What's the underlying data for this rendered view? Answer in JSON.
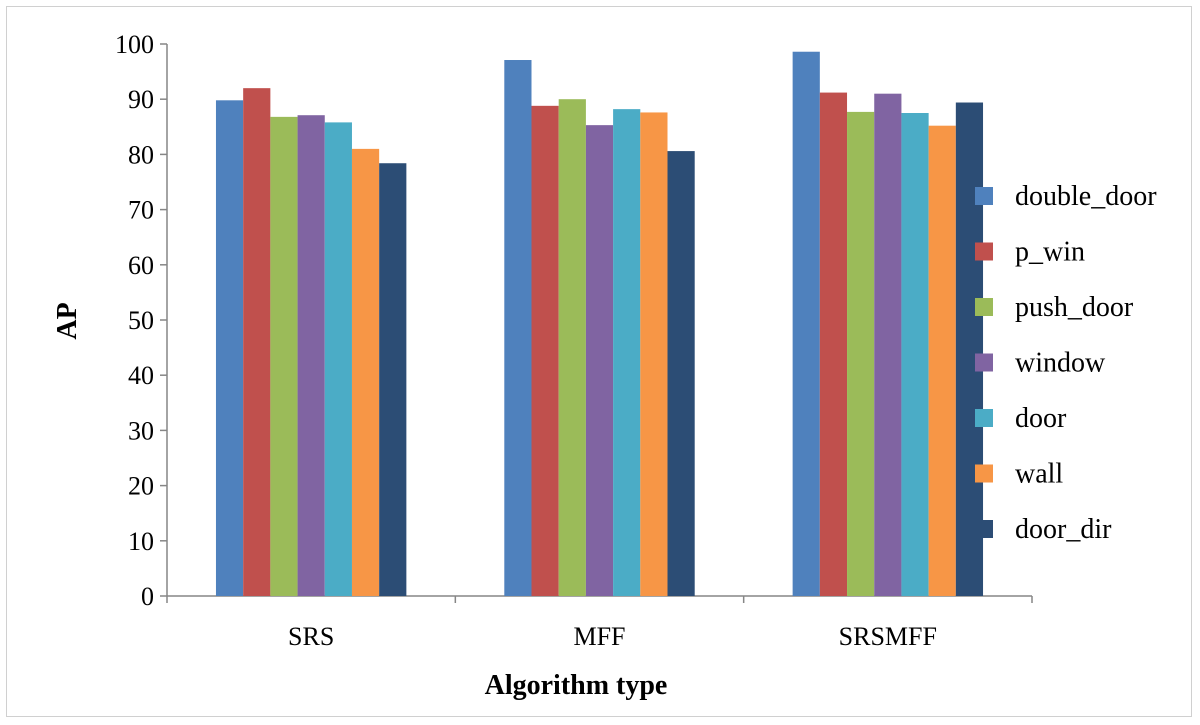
{
  "chart_data": {
    "type": "bar",
    "xlabel": "Algorithm type",
    "ylabel": "AP",
    "categories": [
      "SRS",
      "MFF",
      "SRSMFF"
    ],
    "ylim": [
      0,
      100
    ],
    "yticks": [
      0,
      10,
      20,
      30,
      40,
      50,
      60,
      70,
      80,
      90,
      100
    ],
    "grid": false,
    "legend_position": "right",
    "series": [
      {
        "name": "double_door",
        "color": "#4F81BD",
        "values": [
          89.8,
          97.1,
          98.6
        ]
      },
      {
        "name": "p_win",
        "color": "#C0504D",
        "values": [
          92.0,
          88.8,
          91.2
        ]
      },
      {
        "name": "push_door",
        "color": "#9BBB59",
        "values": [
          86.8,
          90.0,
          87.7
        ]
      },
      {
        "name": "window",
        "color": "#8064A2",
        "values": [
          87.1,
          85.3,
          91.0
        ]
      },
      {
        "name": "door",
        "color": "#4BACC6",
        "values": [
          85.8,
          88.2,
          87.5
        ]
      },
      {
        "name": "wall",
        "color": "#F79646",
        "values": [
          81.0,
          87.6,
          85.2
        ]
      },
      {
        "name": "door_dir",
        "color": "#2C4D75",
        "values": [
          78.4,
          80.6,
          89.4
        ]
      }
    ]
  }
}
